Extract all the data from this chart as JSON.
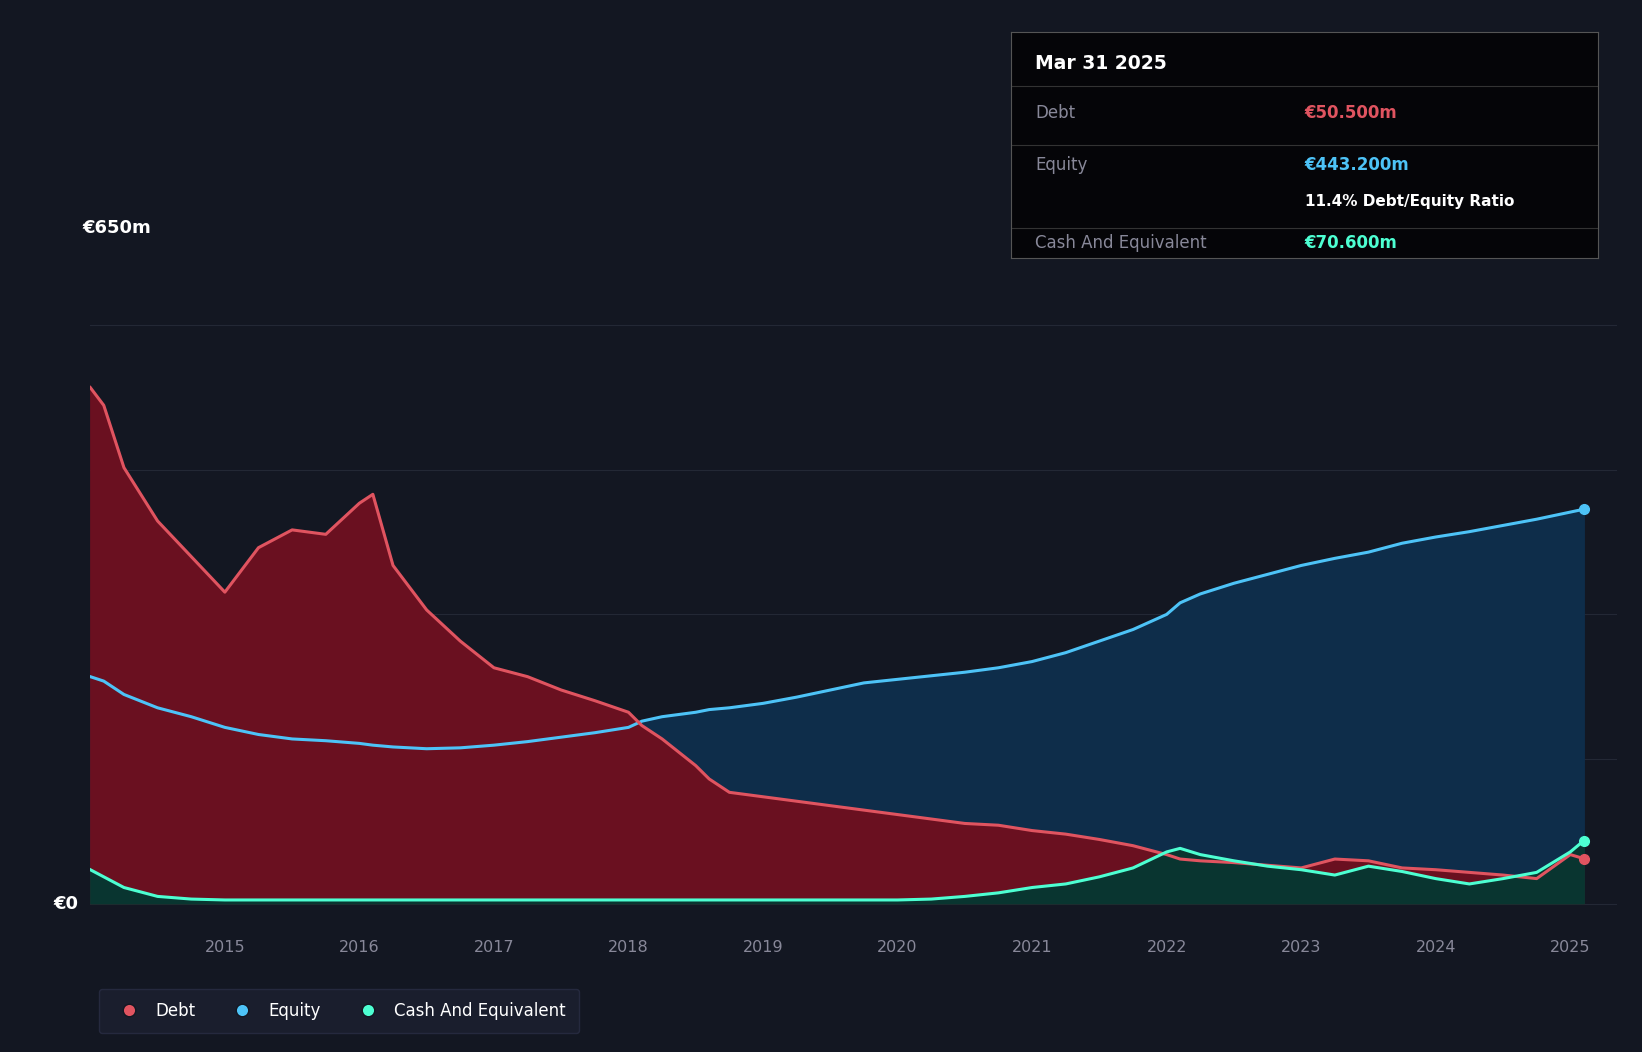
{
  "bg_color": "#131722",
  "grid_color": "#252a38",
  "debt_color": "#e05460",
  "equity_color": "#4dc3f7",
  "cash_color": "#4dffd2",
  "debt_fill": "#6a1020",
  "equity_fill": "#0e2d4a",
  "cash_fill": "#093530",
  "years": [
    2014.0,
    2014.1,
    2014.25,
    2014.5,
    2014.75,
    2015.0,
    2015.25,
    2015.5,
    2015.75,
    2016.0,
    2016.1,
    2016.25,
    2016.5,
    2016.75,
    2017.0,
    2017.25,
    2017.5,
    2017.75,
    2018.0,
    2018.1,
    2018.25,
    2018.5,
    2018.6,
    2018.75,
    2019.0,
    2019.25,
    2019.5,
    2019.75,
    2020.0,
    2020.25,
    2020.5,
    2020.75,
    2021.0,
    2021.25,
    2021.5,
    2021.75,
    2022.0,
    2022.1,
    2022.25,
    2022.5,
    2022.75,
    2023.0,
    2023.25,
    2023.5,
    2023.75,
    2024.0,
    2024.25,
    2024.5,
    2024.75,
    2025.0,
    2025.1
  ],
  "debt": [
    580,
    560,
    490,
    430,
    390,
    350,
    400,
    420,
    415,
    450,
    460,
    380,
    330,
    295,
    265,
    255,
    240,
    228,
    215,
    200,
    185,
    155,
    140,
    125,
    120,
    115,
    110,
    105,
    100,
    95,
    90,
    88,
    82,
    78,
    72,
    65,
    55,
    50,
    48,
    46,
    43,
    40,
    50,
    48,
    40,
    38,
    35,
    32,
    28,
    55,
    50.5
  ],
  "equity": [
    255,
    250,
    235,
    220,
    210,
    198,
    190,
    185,
    183,
    180,
    178,
    176,
    174,
    175,
    178,
    182,
    187,
    192,
    198,
    205,
    210,
    215,
    218,
    220,
    225,
    232,
    240,
    248,
    252,
    256,
    260,
    265,
    272,
    282,
    295,
    308,
    325,
    338,
    348,
    360,
    370,
    380,
    388,
    395,
    405,
    412,
    418,
    425,
    432,
    440,
    443.2
  ],
  "cash": [
    38,
    30,
    18,
    8,
    5,
    4,
    4,
    4,
    4,
    4,
    4,
    4,
    4,
    4,
    4,
    4,
    4,
    4,
    4,
    4,
    4,
    4,
    4,
    4,
    4,
    4,
    4,
    4,
    4,
    5,
    8,
    12,
    18,
    22,
    30,
    40,
    58,
    62,
    55,
    48,
    42,
    38,
    32,
    42,
    36,
    28,
    22,
    28,
    35,
    58,
    70.6
  ],
  "xtick_years": [
    2015,
    2016,
    2017,
    2018,
    2019,
    2020,
    2021,
    2022,
    2023,
    2024,
    2025
  ],
  "ylim_min": -25,
  "ylim_max": 720,
  "xlim_min": 2014.0,
  "xlim_max": 2025.35,
  "y650_label": "€650m",
  "y0_label": "€0",
  "grid_vals": [
    0,
    162.5,
    325,
    487.5,
    650
  ],
  "tooltip_title": "Mar 31 2025",
  "tooltip_debt_label": "Debt",
  "tooltip_debt_value": "€50.500m",
  "tooltip_equity_label": "Equity",
  "tooltip_equity_value": "€443.200m",
  "tooltip_ratio": "11.4% Debt/Equity Ratio",
  "tooltip_cash_label": "Cash And Equivalent",
  "tooltip_cash_value": "€70.600m",
  "legend_debt": "Debt",
  "legend_equity": "Equity",
  "legend_cash": "Cash And Equivalent"
}
